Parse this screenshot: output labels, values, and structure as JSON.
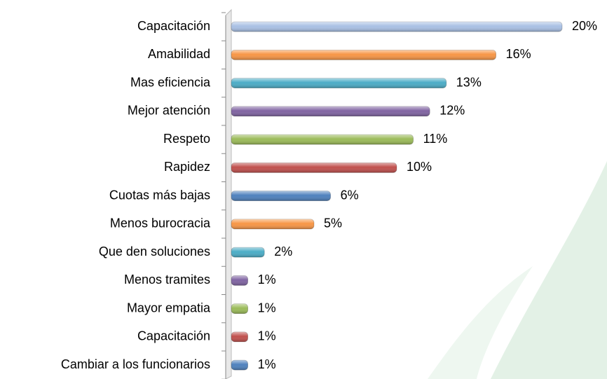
{
  "chart_data": {
    "type": "bar",
    "categories": [
      "Capacitación",
      "Amabilidad",
      "Mas eficiencia",
      "Mejor atención",
      "Respeto",
      "Rapidez",
      "Cuotas más bajas",
      "Menos burocracia",
      "Que den soluciones",
      "Menos tramites",
      "Mayor empatia",
      "Capacitación",
      "Cambiar a los funcionarios"
    ],
    "values": [
      20,
      16,
      13,
      12,
      11,
      10,
      6,
      5,
      2,
      1,
      1,
      1,
      1
    ],
    "value_labels": [
      "20%",
      "16%",
      "13%",
      "12%",
      "11%",
      "10%",
      "6%",
      "5%",
      "2%",
      "1%",
      "1%",
      "1%",
      "1%"
    ],
    "colors": [
      "#a9c0e4",
      "#f79646",
      "#4bacc6",
      "#8064a2",
      "#9bbb59",
      "#c0504d",
      "#4f81bd",
      "#f79646",
      "#4bacc6",
      "#8064a2",
      "#9bbb59",
      "#c0504d",
      "#4f81bd"
    ]
  }
}
